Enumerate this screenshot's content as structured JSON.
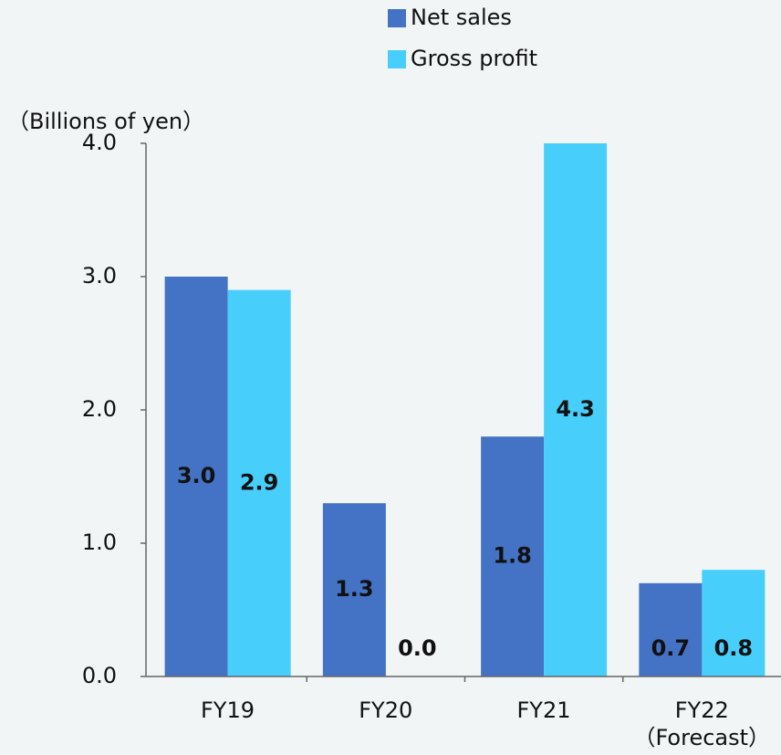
{
  "chart_data": {
    "type": "bar",
    "y_label": "（Billions of yen）",
    "categories": [
      "FY19",
      "FY20",
      "FY21",
      "FY22\n（Forecast）"
    ],
    "series": [
      {
        "name": "Net sales",
        "color": "#4472c4",
        "values": [
          3.0,
          1.3,
          1.8,
          0.7
        ],
        "value_labels": [
          "3.0",
          "1.3",
          "1.8",
          "0.7"
        ]
      },
      {
        "name": "Gross profit",
        "color": "#47cefb",
        "values": [
          2.9,
          0.0,
          4.3,
          0.8
        ],
        "value_labels": [
          "2.9",
          "0.0",
          "4.3",
          "0.8"
        ]
      }
    ],
    "ylim": [
      0,
      4
    ],
    "yticks": [
      {
        "value": 0,
        "label": "0.0"
      },
      {
        "value": 1,
        "label": "1.0"
      },
      {
        "value": 2,
        "label": "2.0"
      },
      {
        "value": 3,
        "label": "3.0"
      },
      {
        "value": 4,
        "label": "4.0"
      }
    ],
    "grid": false,
    "legend": "top"
  }
}
